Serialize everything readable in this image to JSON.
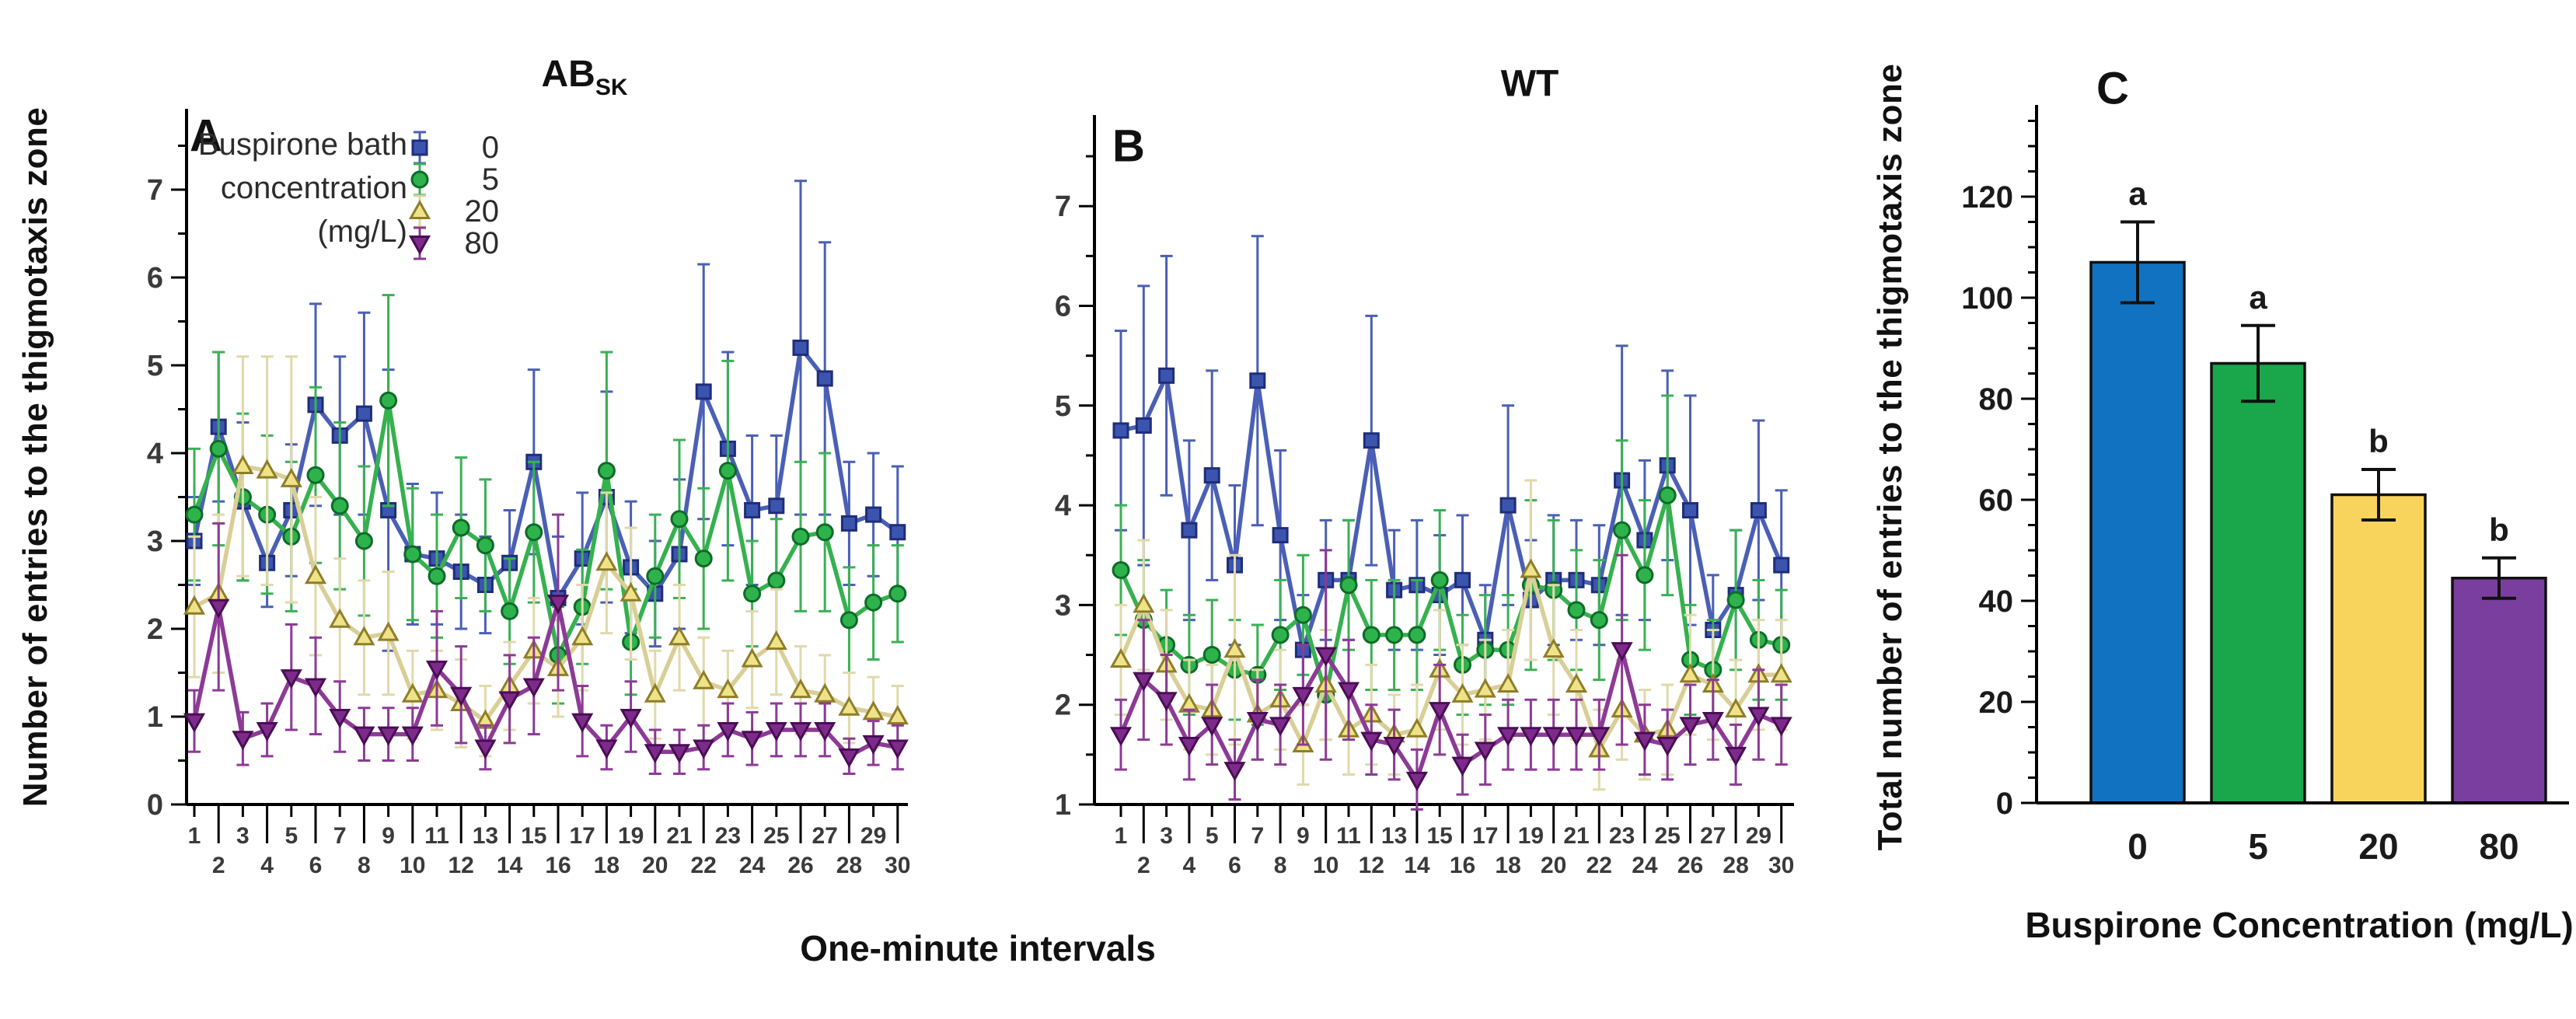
{
  "figure": {
    "kind": "scientific-figure",
    "background": "#ffffff"
  },
  "panel_a": {
    "letter": "A",
    "title_main": "AB",
    "title_sub": "SK",
    "ylabel": "Number of entries to the thigmotaxis zone"
  },
  "panel_b": {
    "letter": "B",
    "title": "WT"
  },
  "panel_c": {
    "letter": "C",
    "ylabel": "Total number of entries to the thigmotaxis zone",
    "xlabel": "Buspirone Concentration (mg/L)"
  },
  "shared_xlabel": "One-minute intervals",
  "legend": {
    "title_lines": [
      "Buspirone bath",
      "concentration",
      "(mg/L)"
    ],
    "items": [
      {
        "label": "0",
        "marker": "square",
        "fill": "#3b55af",
        "edge": "#1f2d7a",
        "err": "#4a5fb5"
      },
      {
        "label": "5",
        "marker": "circle",
        "fill": "#2eb34c",
        "edge": "#0e6b28",
        "err": "#3bb055"
      },
      {
        "label": "20",
        "marker": "triangle-up",
        "fill": "#efe387",
        "edge": "#8f7d2a",
        "err": "#ddd6a4"
      },
      {
        "label": "80",
        "marker": "triangle-down",
        "fill": "#7d2b8b",
        "edge": "#4a0d55",
        "err": "#8c3a96"
      }
    ]
  },
  "chart_data": [
    {
      "type": "line",
      "panel": "A",
      "title": "ABSK",
      "xlabel": "One-minute intervals",
      "ylabel": "Number of entries to the thigmotaxis zone",
      "x": [
        1,
        2,
        3,
        4,
        5,
        6,
        7,
        8,
        9,
        10,
        11,
        12,
        13,
        14,
        15,
        16,
        17,
        18,
        19,
        20,
        21,
        22,
        23,
        24,
        25,
        26,
        27,
        28,
        29,
        30
      ],
      "ylim": [
        0,
        7.9
      ],
      "yticks": [
        0,
        1,
        2,
        3,
        4,
        5,
        6,
        7
      ],
      "grid": false,
      "legend_position": "top-left-inside",
      "series": [
        {
          "name": "0 mg/L",
          "marker": "square",
          "line": "#4a5fb5",
          "fill": "#3b55af",
          "edge": "#1f2d7a",
          "err_color": "#4a5fb5",
          "values": [
            3.0,
            4.3,
            3.45,
            2.75,
            3.35,
            4.55,
            4.2,
            4.45,
            3.35,
            2.85,
            2.8,
            2.65,
            2.5,
            2.75,
            3.9,
            2.35,
            2.8,
            3.5,
            2.7,
            2.4,
            2.85,
            4.7,
            4.05,
            3.35,
            3.4,
            5.2,
            4.85,
            3.2,
            3.3,
            3.1
          ],
          "errors": [
            0.5,
            0.85,
            0.9,
            0.5,
            0.75,
            1.15,
            0.9,
            1.15,
            1.6,
            0.8,
            0.75,
            0.65,
            0.55,
            0.6,
            1.05,
            0.7,
            0.75,
            1.2,
            0.75,
            0.6,
            0.85,
            1.45,
            1.1,
            0.85,
            0.8,
            1.9,
            1.55,
            0.7,
            0.7,
            0.75
          ]
        },
        {
          "name": "5 mg/L",
          "marker": "circle",
          "line": "#35b14e",
          "fill": "#2eb34c",
          "edge": "#0e6b28",
          "err_color": "#3bb055",
          "values": [
            3.3,
            4.05,
            3.5,
            3.3,
            3.05,
            3.75,
            3.4,
            3.0,
            4.6,
            2.85,
            2.6,
            3.15,
            2.95,
            2.2,
            3.1,
            1.7,
            2.25,
            3.8,
            1.85,
            2.6,
            3.25,
            2.8,
            3.8,
            2.4,
            2.55,
            3.05,
            3.1,
            2.1,
            2.3,
            2.4
          ],
          "errors": [
            0.75,
            1.1,
            0.95,
            0.9,
            0.85,
            1.0,
            0.95,
            0.85,
            1.2,
            0.75,
            0.7,
            0.8,
            0.75,
            0.6,
            0.8,
            0.55,
            0.65,
            1.35,
            0.6,
            0.7,
            0.9,
            0.8,
            1.25,
            0.6,
            0.7,
            0.85,
            0.9,
            0.6,
            0.65,
            0.55
          ]
        },
        {
          "name": "20 mg/L",
          "marker": "triangle-up",
          "line": "#d9cf96",
          "fill": "#efe387",
          "edge": "#8f7d2a",
          "err_color": "#e0d9ab",
          "values": [
            2.25,
            2.4,
            3.85,
            3.8,
            3.7,
            2.6,
            2.1,
            1.9,
            1.95,
            1.25,
            1.3,
            1.15,
            0.95,
            1.35,
            1.75,
            1.55,
            1.9,
            2.75,
            2.4,
            1.25,
            1.9,
            1.4,
            1.3,
            1.65,
            1.85,
            1.3,
            1.25,
            1.1,
            1.05,
            1.0
          ],
          "errors": [
            0.8,
            0.9,
            1.25,
            1.3,
            1.4,
            0.9,
            0.7,
            0.65,
            0.7,
            0.5,
            0.45,
            0.5,
            0.4,
            0.5,
            0.6,
            0.55,
            0.6,
            0.8,
            0.75,
            0.5,
            0.6,
            0.5,
            0.45,
            0.55,
            0.6,
            0.5,
            0.45,
            0.4,
            0.4,
            0.35
          ]
        },
        {
          "name": "80 mg/L",
          "marker": "triangle-down",
          "line": "#8c3a96",
          "fill": "#7d2b8b",
          "edge": "#4a0d55",
          "err_color": "#8c3a96",
          "values": [
            0.95,
            2.25,
            0.75,
            0.85,
            1.45,
            1.35,
            1.0,
            0.8,
            0.8,
            0.8,
            1.55,
            1.25,
            0.65,
            1.2,
            1.35,
            2.3,
            0.95,
            0.65,
            1.0,
            0.6,
            0.6,
            0.65,
            0.85,
            0.75,
            0.85,
            0.85,
            0.85,
            0.55,
            0.7,
            0.65
          ],
          "errors": [
            0.35,
            0.95,
            0.3,
            0.3,
            0.6,
            0.55,
            0.4,
            0.3,
            0.3,
            0.3,
            0.65,
            0.55,
            0.25,
            0.5,
            0.55,
            1.0,
            0.4,
            0.25,
            0.4,
            0.25,
            0.25,
            0.25,
            0.3,
            0.3,
            0.3,
            0.3,
            0.3,
            0.2,
            0.25,
            0.25
          ]
        }
      ]
    },
    {
      "type": "line",
      "panel": "B",
      "title": "WT",
      "xlabel": "One-minute intervals",
      "x": [
        1,
        2,
        3,
        4,
        5,
        6,
        7,
        8,
        9,
        10,
        11,
        12,
        13,
        14,
        15,
        16,
        17,
        18,
        19,
        20,
        21,
        22,
        23,
        24,
        25,
        26,
        27,
        28,
        29,
        30
      ],
      "ylim": [
        1,
        7.9
      ],
      "yticks": [
        1,
        2,
        3,
        4,
        5,
        6,
        7
      ],
      "grid": false,
      "series": [
        {
          "name": "0 mg/L",
          "marker": "square",
          "line": "#4a5fb5",
          "fill": "#3b55af",
          "edge": "#1f2d7a",
          "err_color": "#4a5fb5",
          "values": [
            4.75,
            4.8,
            5.3,
            3.75,
            4.3,
            3.4,
            5.25,
            3.7,
            2.55,
            3.25,
            3.25,
            4.65,
            3.15,
            3.2,
            3.1,
            3.25,
            2.65,
            4.0,
            3.05,
            3.25,
            3.25,
            3.2,
            4.25,
            3.65,
            4.4,
            3.95,
            2.75,
            3.1,
            3.95,
            3.4
          ],
          "errors": [
            1.0,
            1.4,
            1.2,
            0.9,
            1.05,
            0.8,
            1.45,
            0.85,
            0.55,
            0.6,
            0.6,
            1.25,
            0.6,
            0.65,
            0.6,
            0.65,
            0.55,
            1.0,
            0.6,
            0.65,
            0.6,
            0.6,
            1.35,
            0.8,
            0.95,
            1.15,
            0.55,
            0.65,
            0.9,
            0.75
          ]
        },
        {
          "name": "5 mg/L",
          "marker": "circle",
          "line": "#35b14e",
          "fill": "#2eb34c",
          "edge": "#0e6b28",
          "err_color": "#3bb055",
          "values": [
            3.35,
            2.85,
            2.6,
            2.4,
            2.5,
            2.35,
            2.3,
            2.7,
            2.9,
            2.1,
            3.2,
            2.7,
            2.7,
            2.7,
            3.25,
            2.4,
            2.55,
            2.55,
            3.2,
            3.15,
            2.95,
            2.85,
            3.75,
            3.3,
            4.1,
            2.45,
            2.35,
            3.05,
            2.65,
            2.6
          ],
          "errors": [
            0.65,
            0.6,
            0.55,
            0.5,
            0.55,
            0.5,
            0.5,
            0.55,
            0.6,
            0.45,
            0.65,
            0.55,
            0.55,
            0.55,
            0.7,
            0.5,
            0.55,
            0.55,
            0.85,
            0.7,
            0.6,
            0.6,
            0.9,
            0.75,
            1.0,
            0.55,
            0.5,
            0.7,
            0.6,
            0.55
          ]
        },
        {
          "name": "20 mg/L",
          "marker": "triangle-up",
          "line": "#d9cf96",
          "fill": "#efe387",
          "edge": "#8f7d2a",
          "err_color": "#e0d9ab",
          "values": [
            2.45,
            3.0,
            2.4,
            2.0,
            1.95,
            2.55,
            1.9,
            2.05,
            1.6,
            2.2,
            1.75,
            1.9,
            1.7,
            1.75,
            2.35,
            2.1,
            2.15,
            2.2,
            3.35,
            2.55,
            2.2,
            1.55,
            1.95,
            1.7,
            1.75,
            2.3,
            2.2,
            1.95,
            2.3,
            2.3
          ],
          "errors": [
            0.55,
            0.65,
            0.55,
            0.45,
            0.45,
            0.95,
            0.45,
            0.5,
            0.4,
            0.55,
            0.45,
            0.5,
            0.4,
            0.45,
            0.6,
            0.5,
            0.5,
            0.55,
            0.9,
            0.65,
            0.55,
            0.4,
            0.5,
            0.45,
            0.45,
            0.6,
            0.55,
            0.5,
            0.55,
            0.55
          ]
        },
        {
          "name": "80 mg/L",
          "marker": "triangle-down",
          "line": "#8c3a96",
          "fill": "#7d2b8b",
          "edge": "#4a0d55",
          "err_color": "#8c3a96",
          "values": [
            1.7,
            2.25,
            2.05,
            1.6,
            1.8,
            1.35,
            1.85,
            1.8,
            2.1,
            2.5,
            2.15,
            1.65,
            1.6,
            1.25,
            1.95,
            1.4,
            1.55,
            1.7,
            1.7,
            1.7,
            1.7,
            1.7,
            2.55,
            1.65,
            1.6,
            1.8,
            1.85,
            1.5,
            1.9,
            1.8
          ],
          "errors": [
            0.35,
            0.6,
            0.45,
            0.35,
            0.4,
            0.3,
            0.4,
            0.4,
            0.5,
            1.05,
            0.5,
            0.35,
            0.35,
            0.3,
            0.45,
            0.3,
            0.35,
            0.35,
            0.35,
            0.35,
            0.35,
            0.35,
            0.95,
            0.35,
            0.35,
            0.4,
            0.4,
            0.3,
            0.45,
            0.4
          ]
        }
      ]
    },
    {
      "type": "bar",
      "panel": "C",
      "categories": [
        "0",
        "5",
        "20",
        "80"
      ],
      "values": [
        107,
        87,
        61,
        44.5
      ],
      "errors": [
        8,
        7.5,
        5,
        4
      ],
      "sig_letters": [
        "a",
        "a",
        "b",
        "b"
      ],
      "colors": [
        "#1272c2",
        "#1aa64a",
        "#f9d45c",
        "#7a3f9e"
      ],
      "bar_edge": "#111111",
      "xlabel": "Buspirone Concentration (mg/L)",
      "ylabel": "Total number of entries to the thigmotaxis zone",
      "ylim": [
        0,
        135
      ],
      "yticks": [
        0,
        20,
        40,
        60,
        80,
        100,
        120
      ],
      "grid": false
    }
  ]
}
